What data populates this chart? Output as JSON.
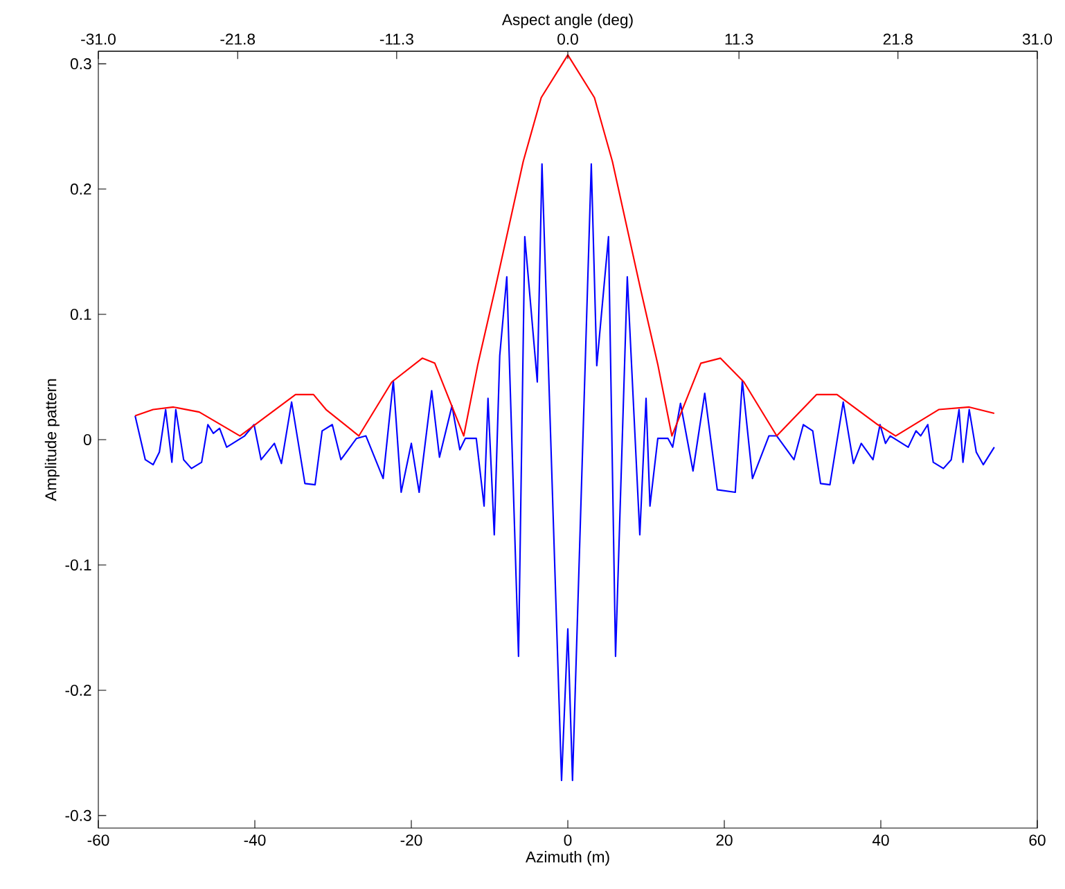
{
  "chart_data": {
    "type": "line",
    "xlabel": "Azimuth (m)",
    "ylabel": "Amplitude pattern",
    "x2label": "Aspect angle (deg)",
    "xlim": [
      -60,
      60
    ],
    "ylim": [
      -0.31,
      0.31
    ],
    "xticks": [
      -60,
      -40,
      -20,
      0,
      20,
      40,
      60
    ],
    "yticks": [
      {
        "value": -0.3,
        "label": "-0.3"
      },
      {
        "value": -0.2,
        "label": "-0.2"
      },
      {
        "value": -0.1,
        "label": "-0.1"
      },
      0,
      {
        "value": 0.1,
        "label": "0.1"
      },
      {
        "value": 0.2,
        "label": "0.2"
      },
      {
        "value": 0.3,
        "label": "0.3"
      }
    ],
    "x2lim": [
      -31.0,
      31.0
    ],
    "x2ticks": [
      {
        "value": -31.0,
        "label": "-31.0"
      },
      {
        "value": -21.8,
        "label": "-21.8"
      },
      {
        "value": -11.3,
        "label": "-11.3"
      },
      {
        "value": 0,
        "label": "0.0"
      },
      {
        "value": 11.3,
        "label": "11.3"
      },
      {
        "value": 21.8,
        "label": "21.8"
      },
      {
        "value": 31.0,
        "label": "31.0"
      }
    ],
    "grid": false,
    "marker": "none",
    "line_style": "solid",
    "series": [
      {
        "color": "#0000ff",
        "x": [
          -55.3,
          -54,
          -53,
          -52.2,
          -51.4,
          -50.6,
          -50.1,
          -49.1,
          -48.1,
          -46.8,
          -46,
          -45.3,
          -44.5,
          -43.6,
          -41.3,
          -40.1,
          -39.2,
          -37.5,
          -36.6,
          -35.3,
          -33.6,
          -32.3,
          -31.4,
          -30.1,
          -29,
          -27,
          -25.8,
          -23.6,
          -22.3,
          -21.3,
          -20,
          -19,
          -17.4,
          -16.4,
          -14.8,
          -13.8,
          -13.1,
          -11.7,
          -10.7,
          -10.2,
          -9.4,
          -8.7,
          -7.8,
          -6.3,
          -5.5,
          -3.9,
          -3.3,
          -0.8,
          0,
          0.6,
          3,
          3.7,
          5.2,
          6.1,
          7.6,
          9.2,
          10,
          10.5,
          11.5,
          12.8,
          13.4,
          14.4,
          16,
          17.5,
          19.1,
          21.4,
          22.3,
          23.6,
          25.7,
          26.7,
          28.9,
          30.1,
          31.3,
          32.3,
          33.5,
          35.2,
          36.5,
          37.5,
          39,
          39.9,
          40.6,
          41.2,
          43.5,
          44.5,
          45.1,
          46,
          46.7,
          48,
          49,
          50,
          50.5,
          51.3,
          52.2,
          53.1,
          54.5
        ],
        "values": [
          0.019,
          -0.016,
          -0.02,
          -0.01,
          0.024,
          -0.018,
          0.024,
          -0.016,
          -0.023,
          -0.018,
          0.012,
          0.005,
          0.009,
          -0.006,
          0.003,
          0.012,
          -0.016,
          -0.003,
          -0.019,
          0.03,
          -0.035,
          -0.036,
          0.007,
          0.012,
          -0.016,
          0.001,
          0.003,
          -0.031,
          0.047,
          -0.042,
          -0.003,
          -0.042,
          0.039,
          -0.014,
          0.027,
          -0.008,
          0.001,
          0.001,
          -0.053,
          0.033,
          -0.076,
          0.067,
          0.13,
          -0.173,
          0.162,
          0.046,
          0.22,
          -0.272,
          -0.151,
          -0.272,
          0.22,
          0.059,
          0.162,
          -0.173,
          0.13,
          -0.076,
          0.033,
          -0.053,
          0.001,
          0.001,
          -0.006,
          0.029,
          -0.025,
          0.037,
          -0.04,
          -0.042,
          0.047,
          -0.031,
          0.003,
          0.003,
          -0.016,
          0.012,
          0.007,
          -0.035,
          -0.036,
          0.03,
          -0.019,
          -0.003,
          -0.016,
          0.012,
          -0.003,
          0.003,
          -0.006,
          0.007,
          0.003,
          0.012,
          -0.018,
          -0.023,
          -0.016,
          0.024,
          -0.018,
          0.024,
          -0.01,
          -0.02,
          -0.006
        ]
      },
      {
        "color": "#ff0000",
        "x": [
          -55.3,
          -53,
          -50.4,
          -47.1,
          -41.9,
          -34.8,
          -32.5,
          -30.9,
          -26.7,
          -22.5,
          -18.6,
          -17,
          -13.3,
          -11.5,
          -9.3,
          -5.7,
          -3.4,
          0,
          3.4,
          5.7,
          9.3,
          11.5,
          13.3,
          17,
          19.5,
          22.5,
          26.7,
          31.8,
          34.4,
          39.6,
          41.9,
          47.4,
          51.3,
          54.5
        ],
        "values": [
          0.019,
          0.024,
          0.026,
          0.022,
          0.003,
          0.036,
          0.036,
          0.024,
          0.003,
          0.046,
          0.065,
          0.061,
          0.003,
          0.06,
          0.12,
          0.222,
          0.273,
          0.307,
          0.273,
          0.222,
          0.12,
          0.06,
          0.003,
          0.061,
          0.065,
          0.046,
          0.003,
          0.036,
          0.036,
          0.012,
          0.003,
          0.024,
          0.026,
          0.021
        ]
      }
    ]
  }
}
